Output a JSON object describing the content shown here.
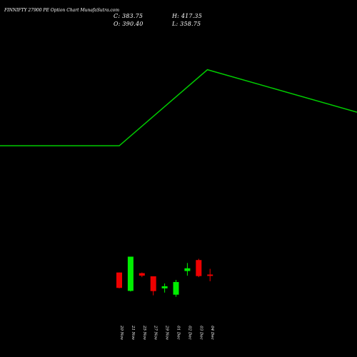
{
  "header": {
    "title": "FINNIFTY 27900  PE Option  Chart  MunafaSutra.com",
    "close_label": "C: 383.75",
    "open_label": "O: 390.40",
    "high_label": "H: 417.35",
    "low_label": "L: 358.75"
  },
  "colors": {
    "background": "#000000",
    "up": "#00ee00",
    "down": "#ee0000",
    "line": "#00cc00",
    "text": "#ffffff"
  },
  "chart_data": {
    "type": "candlestick",
    "categories": [
      "20 Nov",
      "21 Nov",
      "25 Nov",
      "27 Nov",
      "29 Nov",
      "01 Dec",
      "02 Dec",
      "03 Dec",
      "04 Dec"
    ],
    "candles": [
      {
        "date": "20 Nov",
        "open": 400,
        "high": 400,
        "low": 325,
        "close": 327
      },
      {
        "date": "21 Nov",
        "open": 313,
        "high": 475,
        "low": 310,
        "close": 475
      },
      {
        "date": "25 Nov",
        "open": 397,
        "high": 400,
        "low": 378,
        "close": 385
      },
      {
        "date": "27 Nov",
        "open": 382,
        "high": 382,
        "low": 292,
        "close": 312
      },
      {
        "date": "29 Nov",
        "open": 325,
        "high": 348,
        "low": 305,
        "close": 335
      },
      {
        "date": "01 Dec",
        "open": 295,
        "high": 365,
        "low": 285,
        "close": 355
      },
      {
        "date": "02 Dec",
        "open": 407,
        "high": 445,
        "low": 385,
        "close": 420
      },
      {
        "date": "03 Dec",
        "open": 459,
        "high": 465,
        "low": 378,
        "close": 383
      },
      {
        "date": "04 Dec",
        "open": 390.4,
        "high": 417.35,
        "low": 358.75,
        "close": 383.75
      }
    ],
    "line": [
      {
        "date": "20 Nov",
        "value": 1000
      },
      {
        "date": "01 Dec",
        "value": 1360
      },
      {
        "date": "04 Dec",
        "value": 1240
      }
    ],
    "ylim": [
      0,
      1690
    ],
    "grid": false,
    "legend": "none"
  }
}
